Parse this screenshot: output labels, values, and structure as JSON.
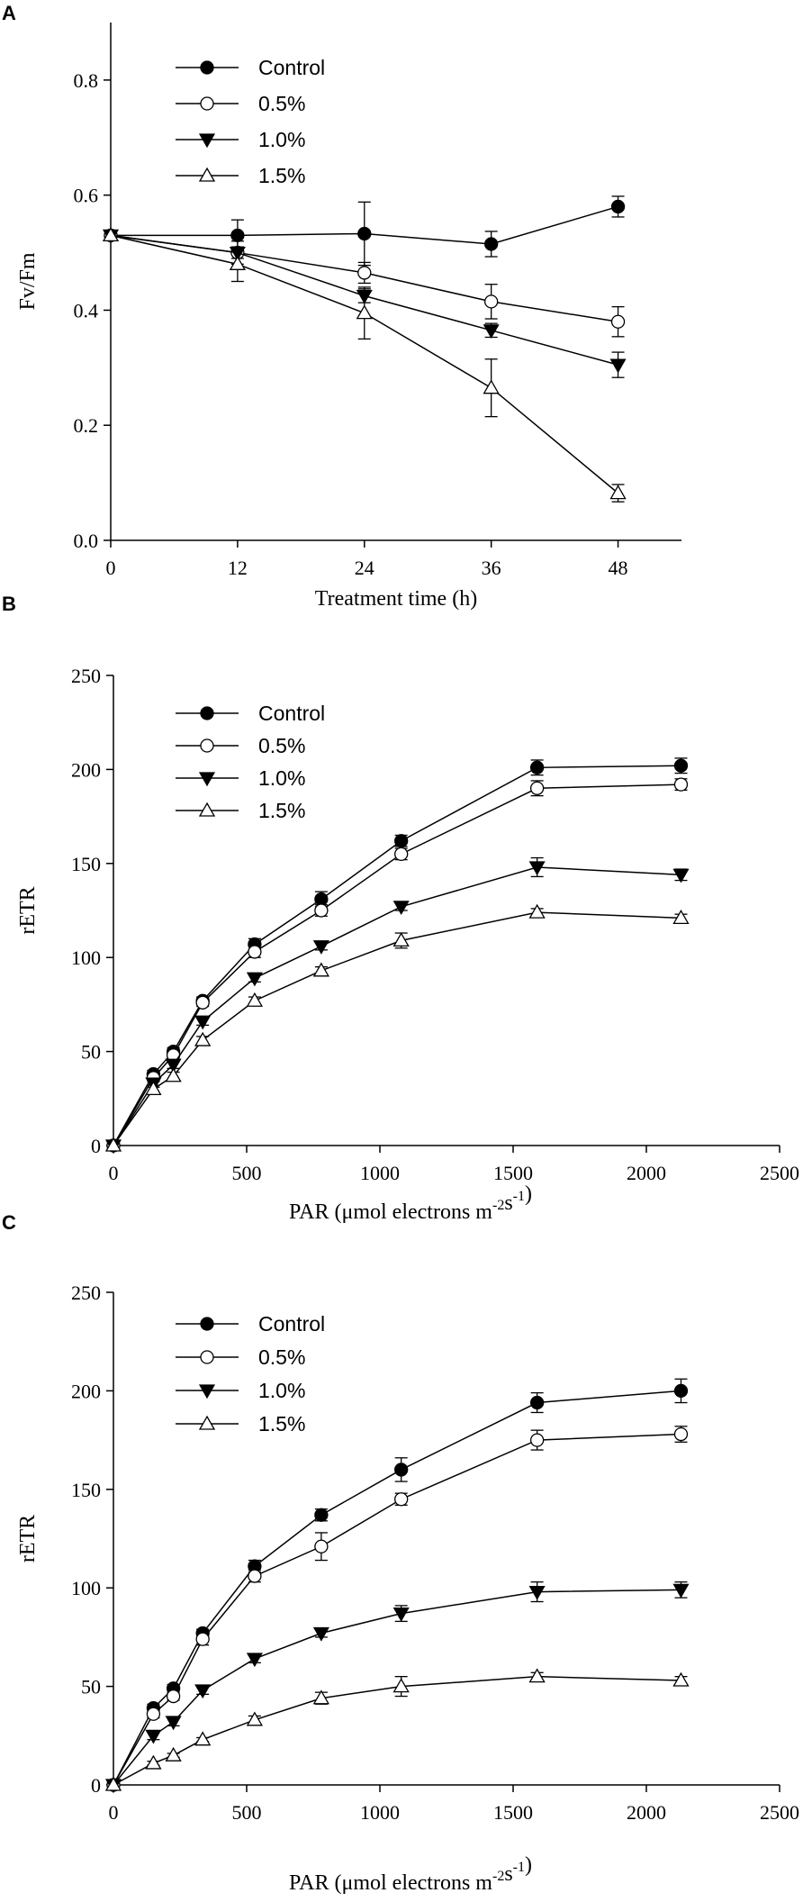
{
  "chart_data": [
    {
      "panel": "A",
      "type": "line",
      "xlabel": "Treatment time (h)",
      "ylabel": "Fv/Fm",
      "xlim": [
        0,
        54
      ],
      "ylim": [
        0,
        0.9
      ],
      "xticks": [
        0,
        12,
        24,
        36,
        48
      ],
      "yticks": [
        0.0,
        0.2,
        0.4,
        0.6,
        0.8
      ],
      "ytick_labels": [
        "0.0",
        "0.2",
        "0.4",
        "0.6",
        "0.8"
      ],
      "legend_placement": "top-left",
      "x": [
        0,
        12,
        24,
        36,
        48
      ],
      "series": [
        {
          "name": "Control",
          "marker": "circle-filled",
          "values": [
            0.53,
            0.53,
            0.533,
            0.515,
            0.58
          ],
          "errors": [
            0,
            0.027,
            0.055,
            0.022,
            0.018
          ]
        },
        {
          "name": "0.5%",
          "marker": "circle-open",
          "values": [
            0.53,
            0.5,
            0.465,
            0.415,
            0.38
          ],
          "errors": [
            0,
            0.02,
            0.018,
            0.03,
            0.026
          ]
        },
        {
          "name": "1.0%",
          "marker": "triangle-down-filled",
          "values": [
            0.53,
            0.5,
            0.425,
            0.365,
            0.305
          ],
          "errors": [
            0,
            0.01,
            0.012,
            0.012,
            0.022
          ]
        },
        {
          "name": "1.5%",
          "marker": "triangle-up-open",
          "values": [
            0.53,
            0.48,
            0.395,
            0.265,
            0.082
          ],
          "errors": [
            0,
            0.03,
            0.045,
            0.05,
            0.015
          ]
        }
      ]
    },
    {
      "panel": "B",
      "type": "line",
      "xlabel": "PAR (μmol electrons m",
      "xlabel_sup1": "-2",
      "xlabel_mid": "s",
      "xlabel_sup2": "-1",
      "xlabel_end": ")",
      "ylabel": "rETR",
      "xlim": [
        0,
        2500
      ],
      "ylim": [
        0,
        250
      ],
      "xticks": [
        0,
        500,
        1000,
        1500,
        2000,
        2500
      ],
      "yticks": [
        0,
        50,
        100,
        150,
        200,
        250
      ],
      "legend_placement": "top-left",
      "x": [
        0,
        150,
        225,
        335,
        530,
        780,
        1080,
        1590,
        2130
      ],
      "series": [
        {
          "name": "Control",
          "marker": "circle-filled",
          "values": [
            0,
            38,
            50,
            77,
            107,
            131,
            162,
            201,
            202
          ],
          "errors": [
            0,
            2,
            2,
            2,
            3,
            4,
            3,
            4,
            4
          ]
        },
        {
          "name": "0.5%",
          "marker": "circle-open",
          "values": [
            0,
            36,
            48,
            76,
            103,
            125,
            155,
            190,
            192
          ],
          "errors": [
            0,
            2,
            2,
            2,
            3,
            3,
            3,
            4,
            3
          ]
        },
        {
          "name": "1.0%",
          "marker": "triangle-down-filled",
          "values": [
            0,
            33,
            43,
            66,
            89,
            106,
            127,
            148,
            144
          ],
          "errors": [
            0,
            2,
            2,
            2,
            2,
            2,
            2,
            5,
            3
          ]
        },
        {
          "name": "1.5%",
          "marker": "triangle-up-open",
          "values": [
            0,
            30,
            37,
            56,
            77,
            93,
            109,
            124,
            121
          ],
          "errors": [
            0,
            2,
            2,
            2,
            2,
            2,
            4,
            2,
            2
          ]
        }
      ]
    },
    {
      "panel": "C",
      "type": "line",
      "xlabel": "PAR (μmol electrons m",
      "xlabel_sup1": "-2",
      "xlabel_mid": "s",
      "xlabel_sup2": "-1",
      "xlabel_end": ")",
      "ylabel": "rETR",
      "xlim": [
        0,
        2500
      ],
      "ylim": [
        0,
        250
      ],
      "xticks": [
        0,
        500,
        1000,
        1500,
        2000,
        2500
      ],
      "yticks": [
        0,
        50,
        100,
        150,
        200,
        250
      ],
      "legend_placement": "top-left",
      "x": [
        0,
        150,
        225,
        335,
        530,
        780,
        1080,
        1590,
        2130
      ],
      "series": [
        {
          "name": "Control",
          "marker": "circle-filled",
          "values": [
            0,
            39,
            49,
            77,
            111,
            137,
            160,
            194,
            200
          ],
          "errors": [
            0,
            2,
            2,
            2,
            3,
            3,
            6,
            5,
            6
          ]
        },
        {
          "name": "0.5%",
          "marker": "circle-open",
          "values": [
            0,
            36,
            45,
            74,
            106,
            121,
            145,
            175,
            178
          ],
          "errors": [
            0,
            2,
            2,
            3,
            3,
            7,
            3,
            5,
            4
          ]
        },
        {
          "name": "1.0%",
          "marker": "triangle-down-filled",
          "values": [
            0,
            25,
            32,
            48,
            64,
            77,
            87,
            98,
            99
          ],
          "errors": [
            0,
            2,
            2,
            2,
            2,
            2,
            4,
            5,
            4
          ]
        },
        {
          "name": "1.5%",
          "marker": "triangle-up-open",
          "values": [
            0,
            11,
            15,
            23,
            33,
            44,
            50,
            55,
            53
          ],
          "errors": [
            0,
            1,
            1,
            1,
            2,
            3,
            5,
            2,
            2
          ]
        }
      ]
    }
  ]
}
